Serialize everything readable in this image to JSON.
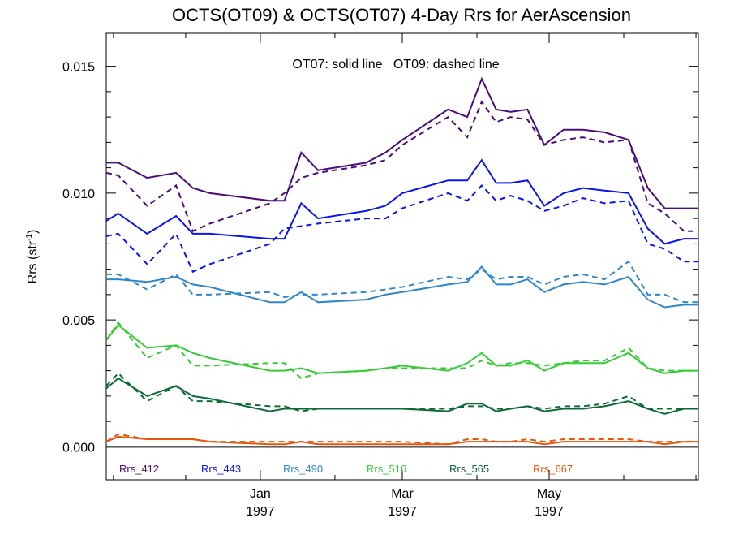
{
  "chart_data": {
    "type": "line",
    "title": "OCTS(OT09) & OCTS(OT07) 4-Day Rrs for AerAscension",
    "annotation": "OT07: solid line   OT09: dashed line",
    "ylabel": "Rrs (str",
    "ylabel_sup": "-1",
    "ylabel_close": ")",
    "ylim": [
      -0.0013,
      0.0163
    ],
    "xlim": [
      "1996-10-29",
      "1997-07-02"
    ],
    "yticks": [
      {
        "value": 0.0,
        "label": "0.000"
      },
      {
        "value": 0.005,
        "label": "0.005"
      },
      {
        "value": 0.01,
        "label": "0.010"
      },
      {
        "value": 0.015,
        "label": "0.015"
      }
    ],
    "xticks": [
      {
        "date": "1997-01-01",
        "month": "Jan",
        "year": "1997"
      },
      {
        "date": "1997-03-01",
        "month": "Mar",
        "year": "1997"
      },
      {
        "date": "1997-05-01",
        "month": "May",
        "year": "1997"
      }
    ],
    "zero_line": true,
    "legend_placement": "bottom, inside plot",
    "dates": [
      "1996-10-29",
      "1996-11-03",
      "1996-11-15",
      "1996-11-27",
      "1996-12-04",
      "1996-12-11",
      "1997-01-05",
      "1997-01-11",
      "1997-01-18",
      "1997-01-25",
      "1997-02-14",
      "1997-02-22",
      "1997-03-01",
      "1997-03-20",
      "1997-03-28",
      "1997-04-03",
      "1997-04-09",
      "1997-04-15",
      "1997-04-22",
      "1997-04-29",
      "1997-05-07",
      "1997-05-15",
      "1997-05-24",
      "1997-06-03",
      "1997-06-11",
      "1997-06-18",
      "1997-06-26",
      "1997-07-02"
    ],
    "series": [
      {
        "name": "Rrs_412",
        "color": "#4B0C7A",
        "ot07": [
          0.0112,
          0.0112,
          0.0106,
          0.0108,
          0.0102,
          0.01,
          0.0097,
          0.0097,
          0.0116,
          0.0109,
          0.0112,
          0.0116,
          0.0121,
          0.0133,
          0.013,
          0.0145,
          0.0133,
          0.0132,
          0.0133,
          0.0119,
          0.0125,
          0.0125,
          0.0124,
          0.0121,
          0.0102,
          0.0094,
          0.0094,
          0.0094
        ],
        "ot09": [
          0.0108,
          0.0107,
          0.0095,
          0.0103,
          0.0085,
          0.0088,
          0.0096,
          0.01,
          0.0106,
          0.0108,
          0.0111,
          0.0113,
          0.0119,
          0.013,
          0.0122,
          0.0136,
          0.0128,
          0.013,
          0.0129,
          0.0119,
          0.0121,
          0.0122,
          0.012,
          0.0121,
          0.0096,
          0.0092,
          0.0085,
          0.0085
        ]
      },
      {
        "name": "Rrs_443",
        "color": "#0A14F0",
        "ot07": [
          0.0089,
          0.0092,
          0.0084,
          0.0091,
          0.0084,
          0.0084,
          0.0082,
          0.0082,
          0.0096,
          0.009,
          0.0093,
          0.0095,
          0.01,
          0.0105,
          0.0105,
          0.0113,
          0.0104,
          0.0104,
          0.0105,
          0.0095,
          0.01,
          0.0102,
          0.0101,
          0.01,
          0.0086,
          0.008,
          0.0082,
          0.0082
        ],
        "ot09": [
          0.0083,
          0.0084,
          0.0072,
          0.0084,
          0.0069,
          0.0072,
          0.008,
          0.0086,
          0.0087,
          0.0088,
          0.009,
          0.009,
          0.0094,
          0.01,
          0.0097,
          0.0103,
          0.0097,
          0.0099,
          0.0097,
          0.0093,
          0.0095,
          0.0098,
          0.0096,
          0.0097,
          0.008,
          0.0078,
          0.0073,
          0.0073
        ]
      },
      {
        "name": "Rrs_490",
        "color": "#2E86C8",
        "ot07": [
          0.0066,
          0.0066,
          0.0065,
          0.0067,
          0.0064,
          0.0063,
          0.0057,
          0.0057,
          0.0061,
          0.0057,
          0.0058,
          0.006,
          0.0061,
          0.0064,
          0.0065,
          0.0071,
          0.0064,
          0.0064,
          0.0066,
          0.0061,
          0.0064,
          0.0065,
          0.0064,
          0.0067,
          0.0058,
          0.0055,
          0.0056,
          0.0056
        ],
        "ot09": [
          0.0068,
          0.0068,
          0.0062,
          0.0068,
          0.006,
          0.006,
          0.0061,
          0.0059,
          0.006,
          0.006,
          0.0061,
          0.0062,
          0.0063,
          0.0067,
          0.0066,
          0.007,
          0.0066,
          0.0067,
          0.0067,
          0.0064,
          0.0067,
          0.0068,
          0.0066,
          0.0073,
          0.006,
          0.006,
          0.0057,
          0.0057
        ]
      },
      {
        "name": "Rrs_516",
        "color": "#33CC33",
        "ot07": [
          0.0042,
          0.0048,
          0.0039,
          0.004,
          0.0037,
          0.0035,
          0.003,
          0.003,
          0.0031,
          0.0029,
          0.003,
          0.0031,
          0.0032,
          0.003,
          0.0033,
          0.0037,
          0.0032,
          0.0032,
          0.0034,
          0.003,
          0.0033,
          0.0033,
          0.0033,
          0.0037,
          0.0031,
          0.0029,
          0.003,
          0.003
        ],
        "ot09": [
          0.0042,
          0.0049,
          0.0035,
          0.004,
          0.0032,
          0.0032,
          0.0033,
          0.0033,
          0.0027,
          0.0029,
          0.003,
          0.0031,
          0.0031,
          0.0031,
          0.0031,
          0.0034,
          0.0032,
          0.0033,
          0.0033,
          0.0032,
          0.0033,
          0.0034,
          0.0034,
          0.0039,
          0.0031,
          0.003,
          0.003,
          0.003
        ]
      },
      {
        "name": "Rrs_565",
        "color": "#0E6B38",
        "ot07": [
          0.0023,
          0.0027,
          0.002,
          0.0024,
          0.002,
          0.0019,
          0.0014,
          0.0015,
          0.0015,
          0.0015,
          0.0015,
          0.0015,
          0.0015,
          0.0014,
          0.0017,
          0.0017,
          0.0014,
          0.0015,
          0.0016,
          0.0014,
          0.0015,
          0.0015,
          0.0016,
          0.0018,
          0.0015,
          0.0013,
          0.0015,
          0.0015
        ],
        "ot09": [
          0.0024,
          0.0029,
          0.0018,
          0.0024,
          0.0018,
          0.0018,
          0.0016,
          0.0016,
          0.0014,
          0.0015,
          0.0015,
          0.0015,
          0.0015,
          0.0015,
          0.0016,
          0.0016,
          0.0015,
          0.0015,
          0.0016,
          0.0015,
          0.0016,
          0.0016,
          0.0017,
          0.002,
          0.0015,
          0.0015,
          0.0015,
          0.0015
        ]
      },
      {
        "name": "Rrs_667",
        "color": "#E8560C",
        "ot07": [
          0.0002,
          0.0004,
          0.0003,
          0.0003,
          0.0003,
          0.0002,
          0.0001,
          0.0001,
          0.0002,
          0.0001,
          0.0001,
          0.0001,
          0.0001,
          0.0001,
          0.0002,
          0.0002,
          0.0002,
          0.0002,
          0.0002,
          0.0001,
          0.0002,
          0.0002,
          0.0002,
          0.0002,
          0.0002,
          0.0001,
          0.0002,
          0.0002
        ],
        "ot09": [
          0.0002,
          0.0005,
          0.0003,
          0.0003,
          0.0003,
          0.0002,
          0.0002,
          0.0002,
          0.0002,
          0.0002,
          0.0002,
          0.0002,
          0.0002,
          0.0001,
          0.0003,
          0.0003,
          0.0002,
          0.0002,
          0.0003,
          0.0002,
          0.0003,
          0.0003,
          0.0003,
          0.0003,
          0.0002,
          0.0002,
          0.0002,
          0.0002
        ]
      }
    ]
  }
}
